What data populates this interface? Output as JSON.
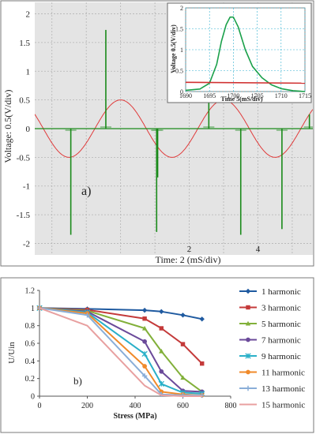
{
  "chart_data": [
    {
      "type": "line",
      "panel_label": "a)",
      "xlabel": "Time: 2 (mS/div)",
      "ylabel": "Voltage: 0.5(V/div)",
      "x_ticks": [
        "2",
        "4"
      ],
      "y_ticks": [
        "2",
        "1.5",
        "1",
        "0.5",
        "0",
        "-0.5",
        "-1",
        "-1.5",
        "-2"
      ],
      "ylim": [
        -2.2,
        2.2
      ],
      "xlim": [
        -2.5,
        5.6
      ],
      "grid": true,
      "series": [
        {
          "color": "#e03a3a",
          "kind": "sine",
          "amplitude": 0.5,
          "period": 3.0,
          "peak_at": 0.0
        },
        {
          "color": "#1a8a1a",
          "kind": "pulses",
          "pulses": [
            {
              "x": -1.45,
              "y": -1.85
            },
            {
              "x": -0.43,
              "y": 1.72
            },
            {
              "x": 1.05,
              "y": -1.8
            },
            {
              "x": 1.08,
              "y": -0.85
            },
            {
              "x": 2.57,
              "y": 1.65
            },
            {
              "x": 3.5,
              "y": -1.85
            },
            {
              "x": 4.7,
              "y": -1.75
            },
            {
              "x": 5.5,
              "y": 0.25
            }
          ]
        }
      ],
      "inset": {
        "xlabel": "Time 5(mS/div)",
        "ylabel": "Voltage 0.5(V/div)",
        "x_ticks": [
          "1690",
          "1695",
          "1700",
          "1705",
          "1710",
          "1715"
        ],
        "y_ticks": [
          "2",
          "1.5",
          "1",
          "0.5",
          "0"
        ],
        "xlim": [
          1690,
          1715
        ],
        "ylim": [
          0,
          2
        ],
        "series": [
          {
            "color": "#1aa04a",
            "x": [
              1690,
              1693,
              1695,
              1696.5,
              1697.5,
              1698.5,
              1699.3,
              1700,
              1701,
              1702.5,
              1704,
              1706,
              1708,
              1710,
              1712.5,
              1715
            ],
            "y": [
              0.03,
              0.06,
              0.2,
              0.65,
              1.2,
              1.6,
              1.78,
              1.78,
              1.55,
              1.0,
              0.6,
              0.33,
              0.16,
              0.07,
              0.02,
              0.0
            ]
          },
          {
            "color": "#d03030",
            "x": [
              1690,
              1715
            ],
            "y": [
              0.22,
              0.2
            ]
          }
        ]
      }
    },
    {
      "type": "line",
      "panel_label": "b)",
      "xlabel": "Stress (MPa)",
      "ylabel": "U/Uin",
      "xlim": [
        0,
        800
      ],
      "ylim": [
        0,
        1.2
      ],
      "x_ticks": [
        "0",
        "200",
        "400",
        "600",
        "800"
      ],
      "y_ticks": [
        "1.2",
        "1",
        "0.8",
        "0.6",
        "0.4",
        "0.2",
        "0"
      ],
      "x": [
        0,
        200,
        440,
        510,
        600,
        680
      ],
      "series": [
        {
          "name": "1 harmonic",
          "color": "#1f5aa0",
          "marker": "diamond",
          "values": [
            1,
            0.99,
            0.975,
            0.96,
            0.92,
            0.875
          ]
        },
        {
          "name": "3 harmonic",
          "color": "#c43a3a",
          "marker": "square",
          "values": [
            1,
            0.98,
            0.88,
            0.77,
            0.59,
            0.37
          ]
        },
        {
          "name": "5 harmonic",
          "color": "#82b03a",
          "marker": "triangle",
          "values": [
            1,
            0.97,
            0.77,
            0.51,
            0.21,
            0.05
          ]
        },
        {
          "name": "7 harmonic",
          "color": "#6b4a9a",
          "marker": "circle",
          "values": [
            1,
            0.96,
            0.62,
            0.28,
            0.06,
            0.05
          ]
        },
        {
          "name": "9 harmonic",
          "color": "#2ab0c8",
          "marker": "star",
          "values": [
            1,
            0.95,
            0.48,
            0.14,
            0.04,
            0.03
          ]
        },
        {
          "name": "11 harmonic",
          "color": "#f08a2a",
          "marker": "circle",
          "values": [
            1,
            0.94,
            0.34,
            0.05,
            0.02,
            0.01
          ]
        },
        {
          "name": "13 harmonic",
          "color": "#8aaed8",
          "marker": "plus",
          "values": [
            1,
            0.92,
            0.23,
            0.02,
            0.01,
            0.01
          ]
        },
        {
          "name": "15 harmonic",
          "color": "#e8a0a0",
          "marker": "none",
          "values": [
            1,
            0.8,
            0.12,
            0.01,
            0.0,
            0.0
          ]
        }
      ]
    }
  ]
}
